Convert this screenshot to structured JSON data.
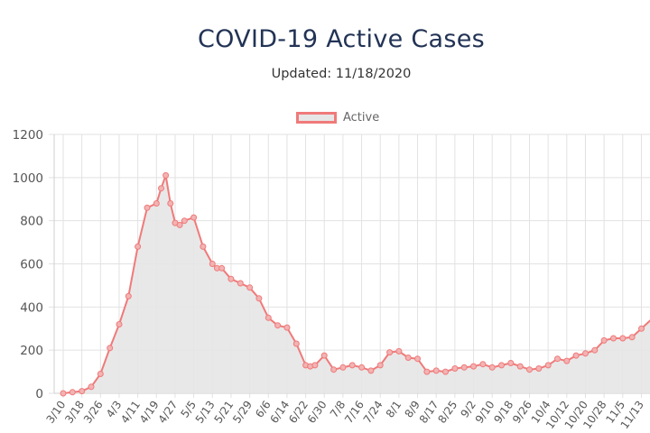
{
  "chart_data": {
    "type": "area",
    "title": "COVID-19 Active Cases",
    "subtitle": "Updated: 11/18/2020",
    "xlabel": "",
    "ylabel": "",
    "ylim": [
      0,
      1200
    ],
    "y_ticks": [
      "0",
      "200",
      "400",
      "600",
      "800",
      "1000",
      "1200"
    ],
    "grid": true,
    "legend": "top-center",
    "x_tick_labels": [
      "3/10",
      "3/18",
      "3/26",
      "4/3",
      "4/11",
      "4/19",
      "4/27",
      "5/5",
      "5/13",
      "5/21",
      "5/29",
      "6/6",
      "6/14",
      "6/22",
      "6/30",
      "7/8",
      "7/16",
      "7/24",
      "8/1",
      "8/9",
      "8/17",
      "8/25",
      "9/2",
      "9/10",
      "9/18",
      "9/26",
      "10/4",
      "10/12",
      "10/20",
      "10/28",
      "11/5",
      "11/13"
    ],
    "series": [
      {
        "name": "Active",
        "fill_color": "#e6e6e6",
        "line_color": "#f07a7a",
        "x": [
          "3/10",
          "3/14",
          "3/18",
          "3/22",
          "3/26",
          "3/30",
          "4/3",
          "4/7",
          "4/11",
          "4/15",
          "4/19",
          "4/21",
          "4/23",
          "4/25",
          "4/27",
          "4/29",
          "5/1",
          "5/5",
          "5/9",
          "5/13",
          "5/15",
          "5/17",
          "5/21",
          "5/25",
          "5/29",
          "6/2",
          "6/6",
          "6/10",
          "6/14",
          "6/18",
          "6/22",
          "6/24",
          "6/26",
          "6/30",
          "7/4",
          "7/8",
          "7/12",
          "7/16",
          "7/20",
          "7/24",
          "7/28",
          "8/1",
          "8/5",
          "8/9",
          "8/13",
          "8/17",
          "8/21",
          "8/25",
          "8/29",
          "9/2",
          "9/6",
          "9/10",
          "9/14",
          "9/18",
          "9/22",
          "9/26",
          "9/30",
          "10/4",
          "10/8",
          "10/12",
          "10/16",
          "10/20",
          "10/24",
          "10/28",
          "11/1",
          "11/5",
          "11/9",
          "11/13",
          "11/18"
        ],
        "values": [
          0,
          5,
          10,
          30,
          90,
          210,
          320,
          450,
          680,
          860,
          880,
          950,
          1010,
          880,
          790,
          780,
          800,
          815,
          680,
          600,
          580,
          580,
          530,
          510,
          490,
          440,
          350,
          315,
          305,
          230,
          130,
          125,
          130,
          175,
          110,
          120,
          130,
          120,
          105,
          130,
          190,
          195,
          165,
          160,
          100,
          105,
          100,
          115,
          120,
          125,
          135,
          120,
          130,
          140,
          125,
          110,
          115,
          130,
          160,
          150,
          175,
          185,
          200,
          245,
          255,
          255,
          260,
          300,
          350
        ]
      }
    ]
  }
}
